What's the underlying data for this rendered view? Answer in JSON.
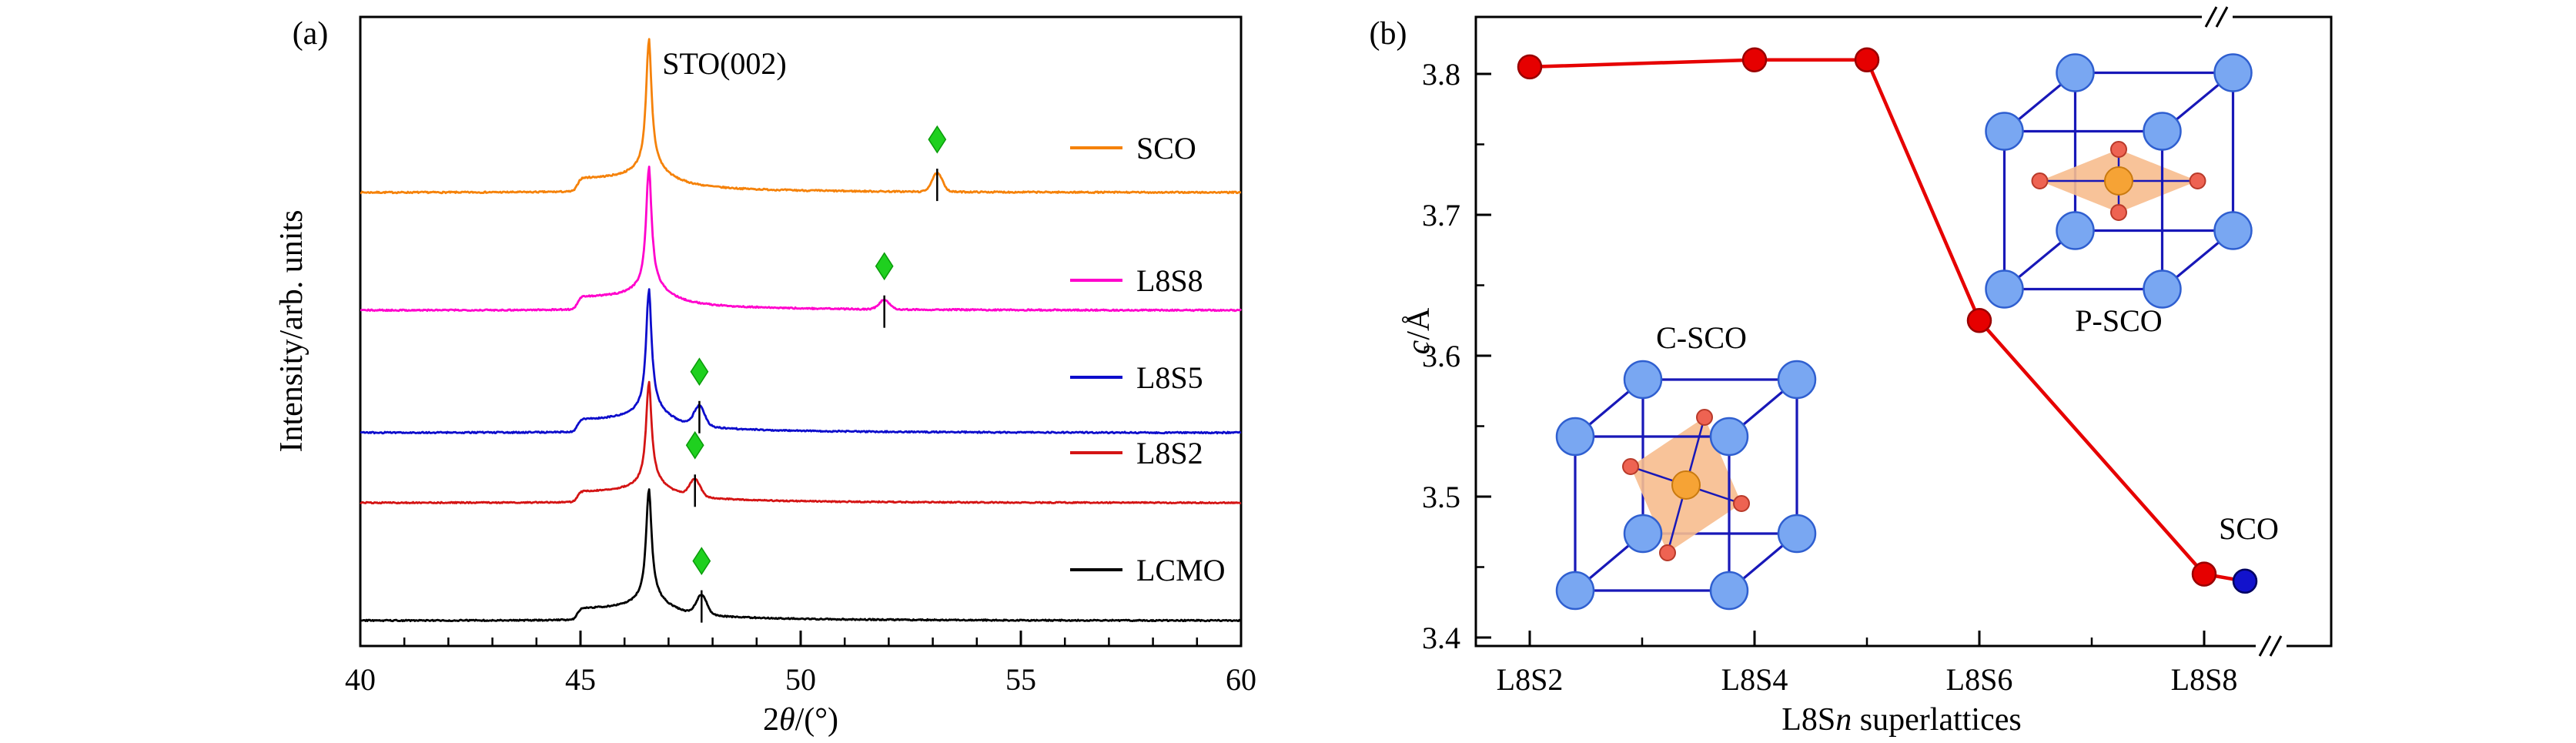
{
  "figure": {
    "background": "#ffffff",
    "panel_a": {
      "tag": "(a)",
      "annotation": "STO(002)",
      "ylabel": "Intensity/arb. units",
      "xlabel_parts": [
        "2",
        "θ",
        "/(°)"
      ]
    },
    "panel_b": {
      "tag": "(b)",
      "ylabel_parts": [
        "c",
        "/Å"
      ],
      "xlabel_parts": [
        "L8S",
        "n",
        " superlattices"
      ],
      "inset_left_label": "C-SCO",
      "inset_right_label": "P-SCO",
      "point_label": "SCO"
    }
  },
  "chart_data": [
    {
      "type": "line",
      "title": "STO(002)",
      "xlabel": "2θ/(°)",
      "ylabel": "Intensity/arb. units",
      "xlim": [
        40,
        60
      ],
      "xticks": [
        40,
        45,
        50,
        55,
        60
      ],
      "substrate_peak_x": 46.55,
      "marker": {
        "shape": "diamond",
        "color": "#1fd01f",
        "edge": "#0a9a0a"
      },
      "series": [
        {
          "name": "SCO",
          "color": "#f5820a",
          "film_peak_x": 53.1
        },
        {
          "name": "L8S8",
          "color": "#ff00cc",
          "film_peak_x": 51.9
        },
        {
          "name": "L8S5",
          "color": "#0d0dcc",
          "film_peak_x": 47.7
        },
        {
          "name": "L8S2",
          "color": "#d41414",
          "film_peak_x": 47.6
        },
        {
          "name": "LCMO",
          "color": "#000000",
          "film_peak_x": 47.75
        }
      ],
      "legend_position": "right"
    },
    {
      "type": "line",
      "xlabel": "L8Sn superlattices",
      "ylabel": "c/Å",
      "ylim": [
        3.4,
        3.85
      ],
      "yticks": [
        3.4,
        3.5,
        3.6,
        3.7,
        3.8
      ],
      "xticks": [
        "L8S2",
        "L8S4",
        "L8S6",
        "L8S8"
      ],
      "axis_break": true,
      "series": [
        {
          "name": "L8Sn superlattices",
          "color": "#e60000",
          "points": [
            {
              "n": 2,
              "c": 3.805
            },
            {
              "n": 4,
              "c": 3.81
            },
            {
              "n": 5,
              "c": 3.81
            },
            {
              "n": 6,
              "c": 3.625
            },
            {
              "n": 8,
              "c": 3.445
            }
          ]
        },
        {
          "name": "SCO",
          "color": "#1212cc",
          "points": [
            {
              "c": 3.44
            }
          ]
        }
      ],
      "insets": [
        {
          "label": "C-SCO",
          "octahedron": "tilted"
        },
        {
          "label": "P-SCO",
          "octahedron": "planar"
        }
      ]
    }
  ]
}
